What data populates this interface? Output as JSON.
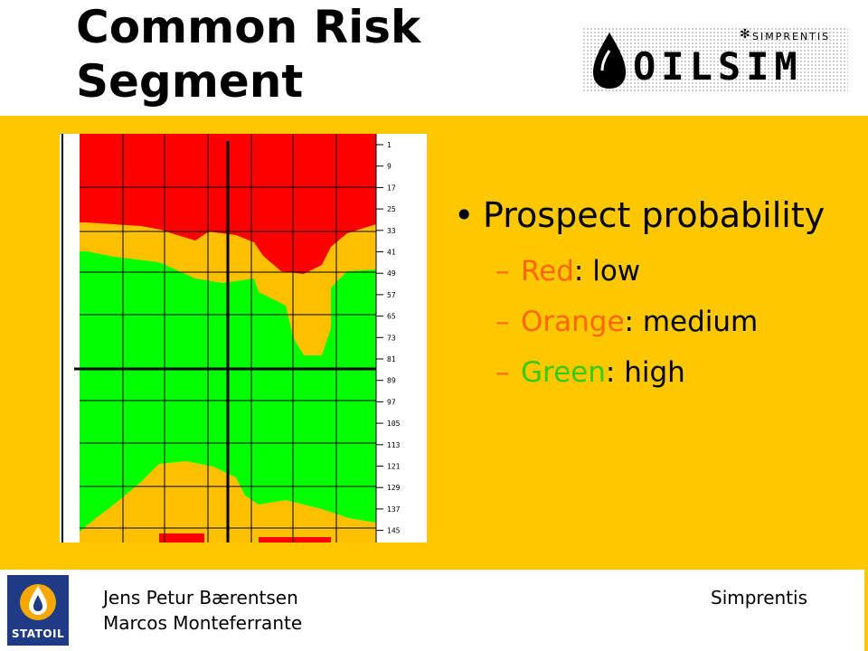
{
  "title": {
    "line1": "Common Risk",
    "line2": "Segment"
  },
  "logo": {
    "word": "OILSIM",
    "sub": "SIMPRENTIS",
    "icon": "oil-drop-icon"
  },
  "map": {
    "legend": "depth-scale",
    "scale_ticks": [
      "1",
      "9",
      "17",
      "25",
      "33",
      "41",
      "49",
      "57",
      "65",
      "73",
      "81",
      "89",
      "97",
      "105",
      "113",
      "121",
      "129",
      "137",
      "145"
    ],
    "colors": {
      "low": "#ff0000",
      "medium": "#ffc000",
      "high": "#00ff00",
      "grid": "#000000"
    }
  },
  "content": {
    "bullet": "Prospect probability",
    "items": [
      {
        "color_word": "Red",
        "rest": ": low",
        "color": "#ff6600"
      },
      {
        "color_word": "Orange",
        "rest": ": medium",
        "color": "#ff6600"
      },
      {
        "color_word": "Green",
        "rest": ": high",
        "color": "#33cc00"
      }
    ]
  },
  "footer": {
    "authors": [
      "Jens Petur Bærentsen",
      "Marcos Monteferrante"
    ],
    "company": "Simprentis",
    "brand": "STATOIL"
  },
  "colors": {
    "main_bg": "#fdc800",
    "brand_blue": "#1f3b86"
  }
}
